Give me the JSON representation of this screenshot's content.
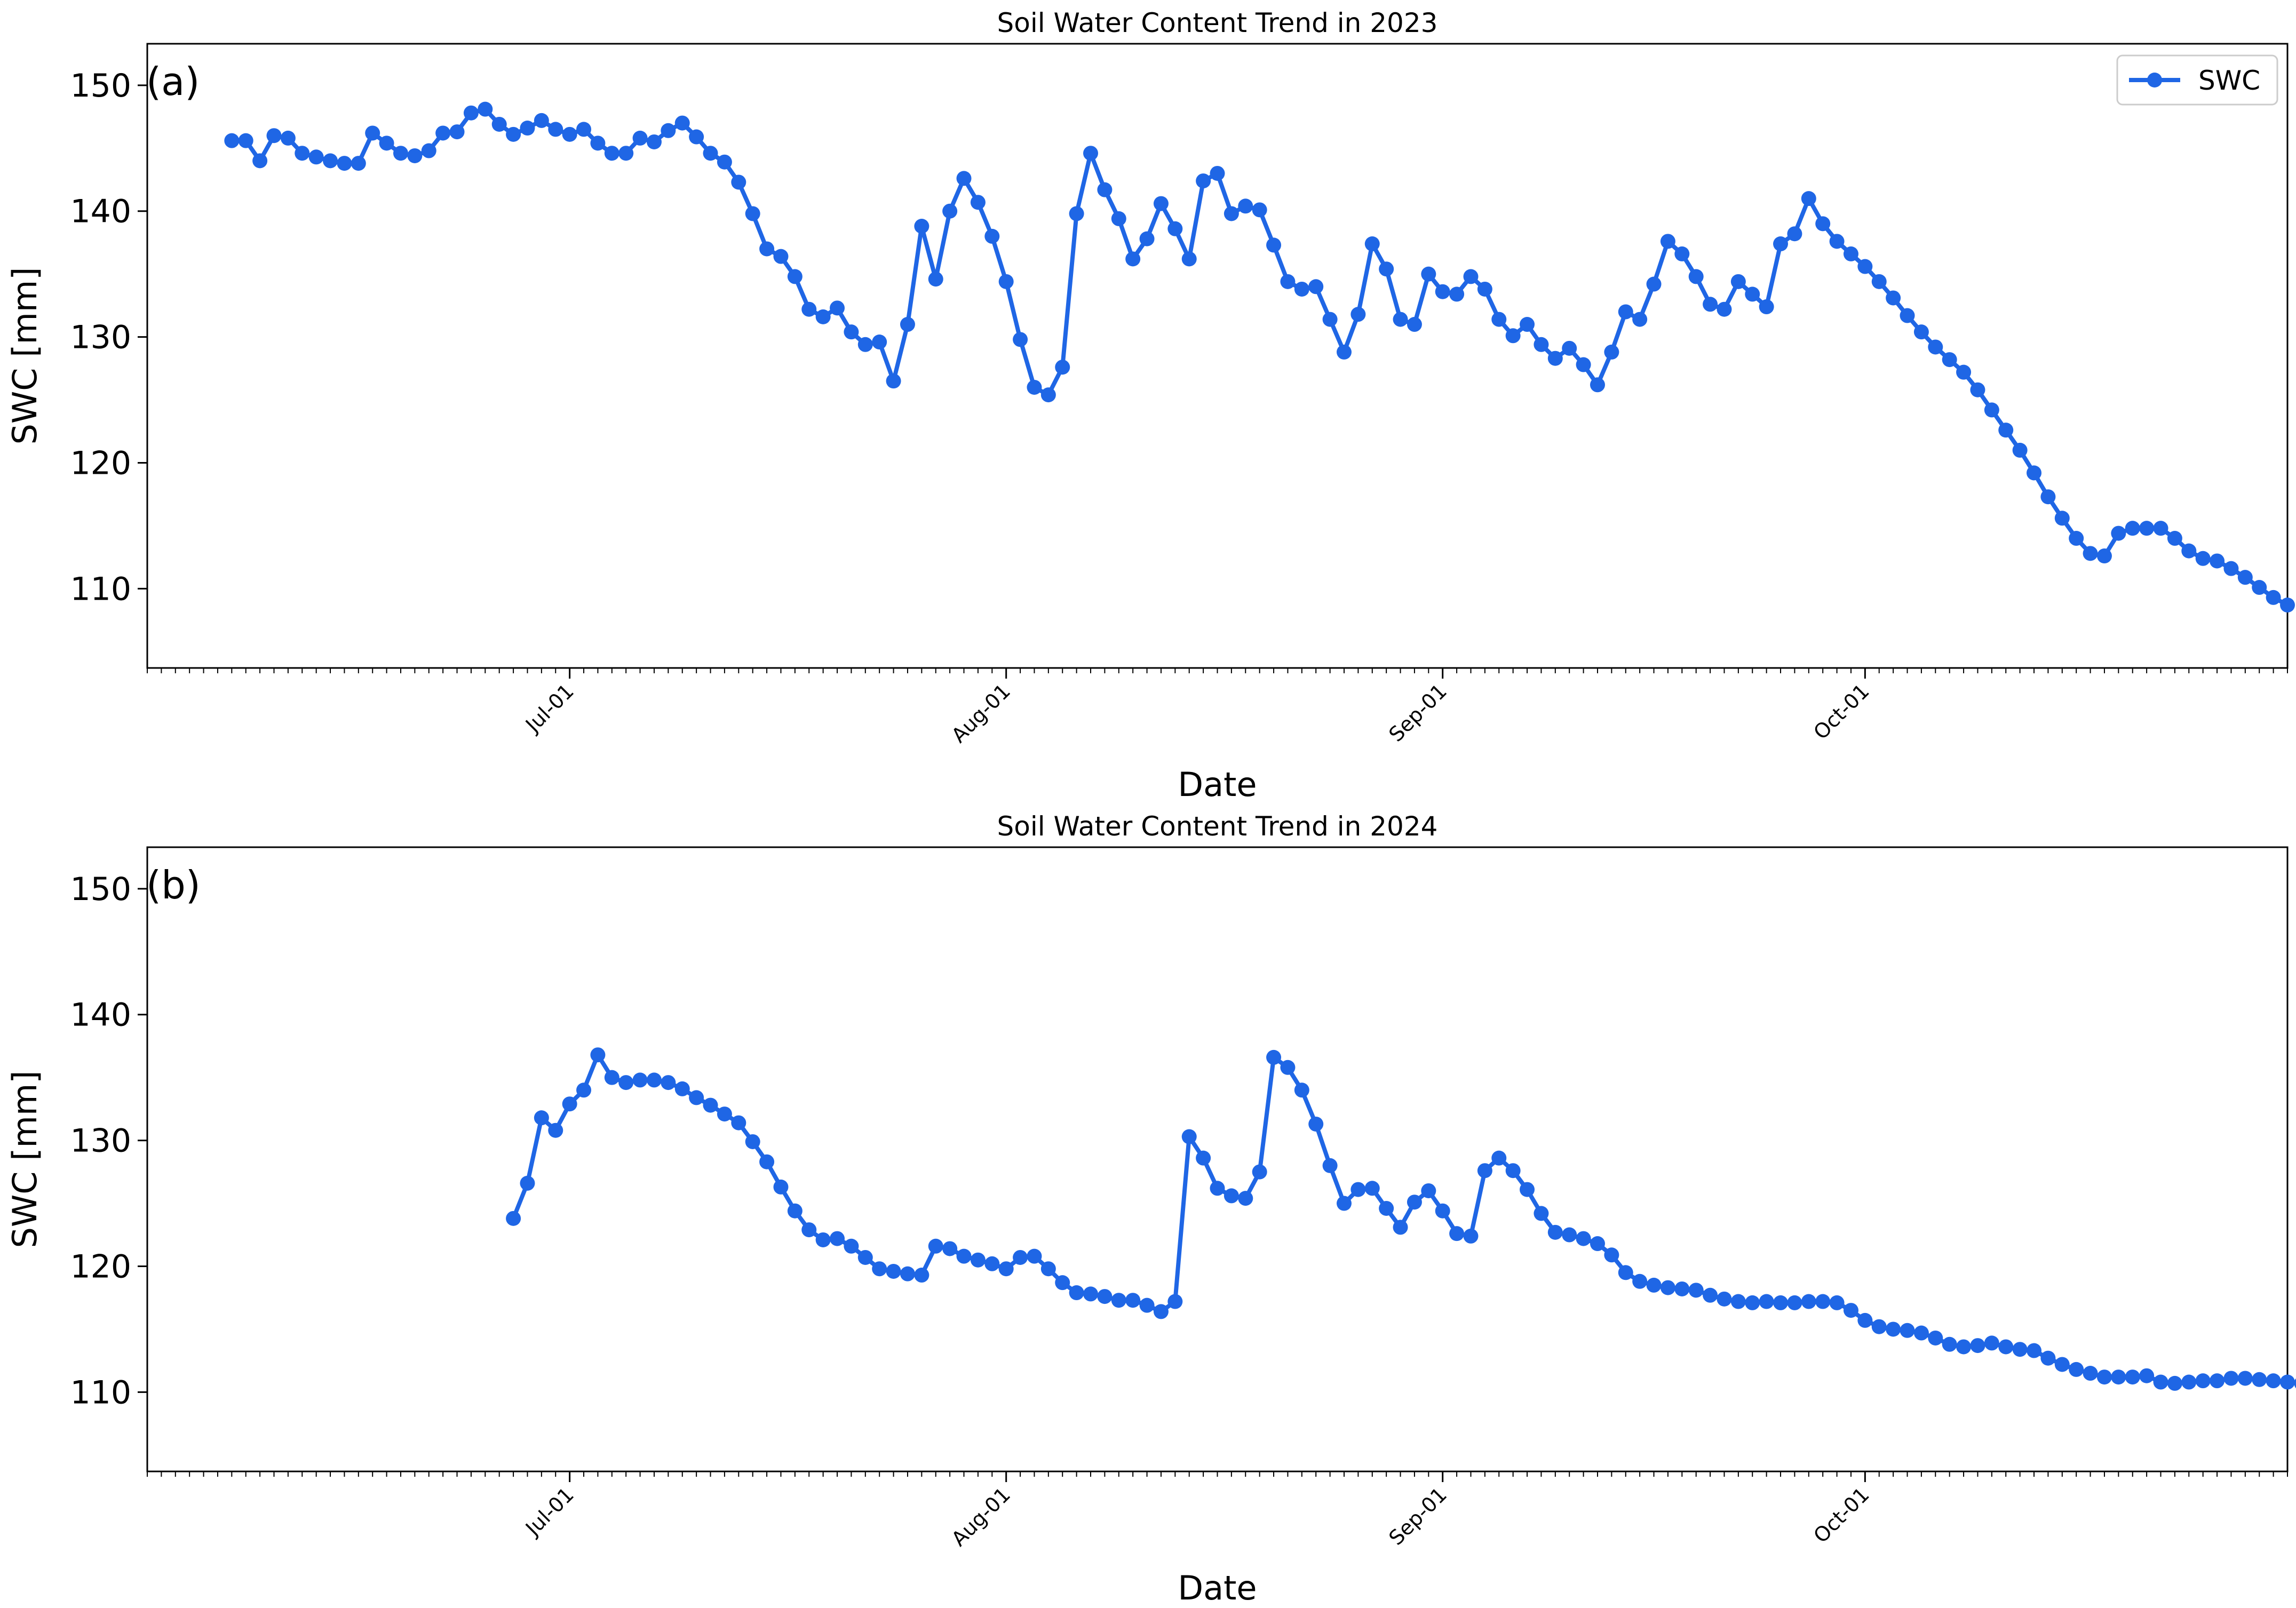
{
  "chart_data": [
    {
      "type": "line",
      "title": "Soil Water Content Trend in 2023",
      "panel_label": "(a)",
      "xlabel": "Date",
      "ylabel": "SWC [mm]",
      "ylim": [
        103.7,
        153.3
      ],
      "xlim": [
        "2023-06-01",
        "2023-10-31"
      ],
      "yticks": [
        110,
        120,
        130,
        140,
        150
      ],
      "xticks": [
        {
          "date": "2023-07-01",
          "label": "Jul-01"
        },
        {
          "date": "2023-08-01",
          "label": "Aug-01"
        },
        {
          "date": "2023-09-01",
          "label": "Sep-01"
        },
        {
          "date": "2023-10-01",
          "label": "Oct-01"
        }
      ],
      "legend": {
        "position": "top-right",
        "entries": [
          "SWC"
        ]
      },
      "color": "#1f66e5",
      "series": [
        {
          "name": "SWC",
          "start_date": "2023-06-07",
          "values": [
            145.6,
            145.6,
            144.0,
            146.0,
            145.8,
            144.6,
            144.3,
            144.0,
            143.8,
            143.8,
            146.2,
            145.4,
            144.6,
            144.4,
            144.8,
            146.2,
            146.3,
            147.8,
            148.1,
            146.9,
            146.1,
            146.6,
            147.2,
            146.5,
            146.1,
            146.5,
            145.4,
            144.6,
            144.6,
            145.8,
            145.5,
            146.4,
            147.0,
            145.9,
            144.6,
            143.9,
            142.3,
            139.8,
            137.0,
            136.4,
            134.8,
            132.2,
            131.6,
            132.3,
            130.4,
            129.4,
            129.6,
            126.5,
            131.0,
            138.8,
            134.6,
            140.0,
            142.6,
            140.7,
            138.0,
            134.4,
            129.8,
            126.0,
            125.4,
            127.6,
            139.8,
            144.6,
            141.7,
            139.4,
            136.2,
            137.8,
            140.6,
            138.6,
            136.2,
            142.4,
            143.0,
            139.8,
            140.4,
            140.1,
            137.3,
            134.4,
            133.8,
            134.0,
            131.4,
            128.8,
            131.8,
            137.4,
            135.4,
            131.4,
            131.0,
            135.0,
            133.6,
            133.4,
            134.8,
            133.8,
            131.4,
            130.1,
            131.0,
            129.4,
            128.3,
            129.1,
            127.8,
            126.2,
            128.8,
            132.0,
            131.4,
            134.2,
            137.6,
            136.6,
            134.8,
            132.6,
            132.2,
            134.4,
            133.4,
            132.4,
            137.4,
            138.2,
            141.0,
            139.0,
            137.6,
            136.6,
            135.6,
            134.4,
            133.1,
            131.7,
            130.4,
            129.2,
            128.2,
            127.2,
            125.8,
            124.2,
            122.6,
            121.0,
            119.2,
            117.3,
            115.6,
            114.0,
            112.8,
            112.6,
            114.4,
            114.8,
            114.8,
            114.8,
            114.0,
            113.0,
            112.4,
            112.2,
            111.6,
            110.9,
            110.1,
            109.3,
            108.7
          ]
        }
      ]
    },
    {
      "type": "line",
      "title": "Soil Water Content Trend in 2024",
      "panel_label": "(b)",
      "xlabel": "Date",
      "ylabel": "SWC [mm]",
      "ylim": [
        103.7,
        153.3
      ],
      "xlim": [
        "2024-06-01",
        "2024-10-31"
      ],
      "yticks": [
        110,
        120,
        130,
        140,
        150
      ],
      "xticks": [
        {
          "date": "2024-07-01",
          "label": "Jul-01"
        },
        {
          "date": "2024-08-01",
          "label": "Aug-01"
        },
        {
          "date": "2024-09-01",
          "label": "Sep-01"
        },
        {
          "date": "2024-10-01",
          "label": "Oct-01"
        }
      ],
      "color": "#1f66e5",
      "series": [
        {
          "start_date": "2024-06-27",
          "values": [
            123.8,
            126.6,
            131.8,
            130.8,
            132.9,
            134.0,
            136.8,
            135.0,
            134.6,
            134.8,
            134.8,
            134.6,
            134.1,
            133.4,
            132.8,
            132.1,
            131.4,
            129.9,
            128.3,
            126.3,
            124.4,
            122.9,
            122.1,
            122.2,
            121.6,
            120.7,
            119.8,
            119.6,
            119.4,
            119.3,
            121.6,
            121.4,
            120.8,
            120.5,
            120.2,
            119.8,
            120.7,
            120.8,
            119.8,
            118.7,
            117.9,
            117.8,
            117.6,
            117.3,
            117.3,
            116.9,
            116.4,
            117.2,
            130.3,
            128.6,
            126.2,
            125.6,
            125.4,
            127.5,
            136.6,
            135.8,
            134.0,
            131.3,
            128.0,
            125.0,
            126.1,
            126.2,
            124.6,
            123.1,
            125.1,
            126.0,
            124.4,
            122.6,
            122.4,
            127.6,
            128.6,
            127.6,
            126.1,
            124.2,
            122.7,
            122.5,
            122.2,
            121.8,
            120.9,
            119.5,
            118.8,
            118.5,
            118.3,
            118.2,
            118.1,
            117.7,
            117.4,
            117.2,
            117.1,
            117.2,
            117.1,
            117.1,
            117.2,
            117.2,
            117.1,
            116.5,
            115.7,
            115.2,
            115.0,
            114.9,
            114.7,
            114.3,
            113.8,
            113.6,
            113.7,
            113.9,
            113.6,
            113.4,
            113.3,
            112.7,
            112.2,
            111.8,
            111.5,
            111.2,
            111.2,
            111.2,
            111.3,
            110.8,
            110.7,
            110.8,
            110.9,
            110.9,
            111.1,
            111.1,
            111.0,
            110.9,
            110.8,
            110.7
          ]
        }
      ]
    }
  ]
}
